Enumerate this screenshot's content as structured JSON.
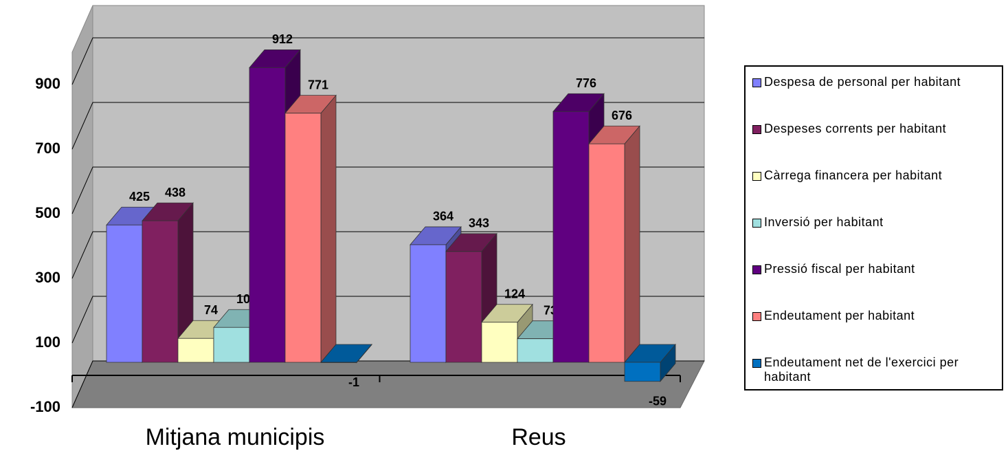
{
  "chart_data": {
    "type": "bar3d",
    "categories": [
      "Mitjana municipis",
      "Reus"
    ],
    "series": [
      {
        "name": "Despesa de personal per habitant",
        "color": "#8080ff",
        "values": [
          425,
          364
        ]
      },
      {
        "name": "Despeses corrents per habitant",
        "color": "#802060",
        "values": [
          438,
          343
        ]
      },
      {
        "name": "Càrrega financera per habitant",
        "color": "#ffffc0",
        "values": [
          74,
          124
        ]
      },
      {
        "name": "Inversió per habitant",
        "color": "#a0e0e0",
        "values": [
          108,
          73
        ]
      },
      {
        "name": "Pressió fiscal per habitant",
        "color": "#600080",
        "values": [
          912,
          776
        ]
      },
      {
        "name": "Endeutament per habitant",
        "color": "#ff8080",
        "values": [
          771,
          676
        ]
      },
      {
        "name": "Endeutament net de l'exercici per habitant",
        "color": "#0070c0",
        "values": [
          -1,
          -59
        ]
      }
    ],
    "ylim": [
      -100,
      1000
    ],
    "yticks": [
      -100,
      100,
      300,
      500,
      700,
      900
    ],
    "grid": true,
    "legend": "right"
  }
}
